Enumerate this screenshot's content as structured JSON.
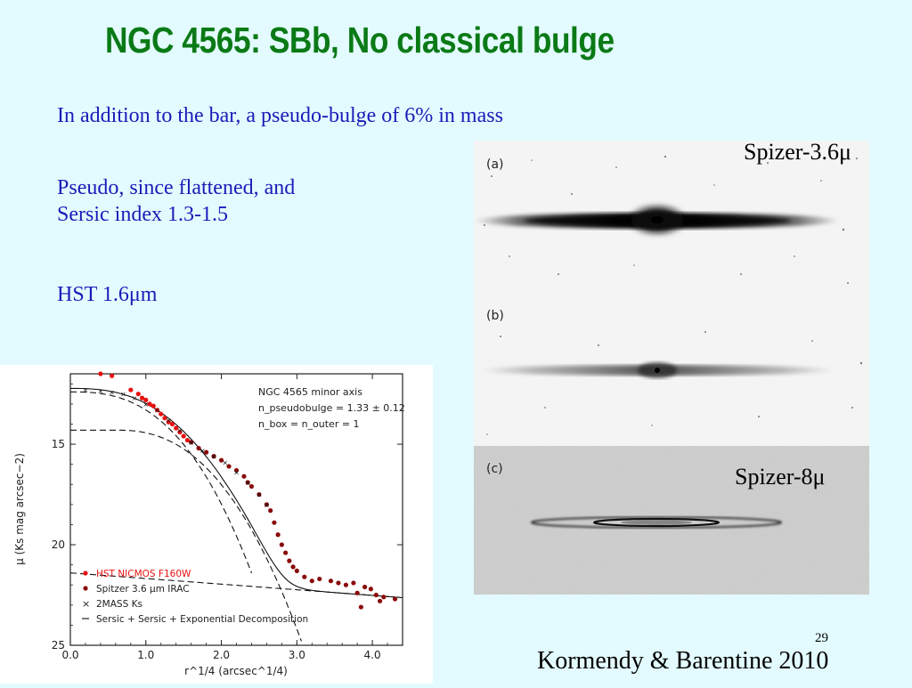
{
  "slide": {
    "title": "NGC 4565: SBb, No classical bulge",
    "line1": "In addition to the bar, a pseudo-bulge of 6% in mass",
    "line2": "Pseudo, since flattened, and",
    "line3": "Sersic index 1.3-1.5",
    "line4": "HST 1.6μm",
    "page_number": "29",
    "credit": "Kormendy & Barentine 2010"
  },
  "images": {
    "label_a": "(a)",
    "label_b": "(b)",
    "label_c": "(c)",
    "caption_top": "Spizer-3.6μ",
    "caption_mid": "Spizer-8μ"
  },
  "chart_data": {
    "type": "scatter",
    "title": "",
    "xlabel": "r^1/4 (arcsec^1/4)",
    "ylabel": "μ (Ks mag arcsec−2)",
    "xlim": [
      0.0,
      4.4
    ],
    "ylim": [
      25,
      11.5
    ],
    "y_inverted": true,
    "x_ticks": [
      "0.0",
      "1.0",
      "2.0",
      "3.0",
      "4.0"
    ],
    "y_ticks": [
      "15",
      "20",
      "25"
    ],
    "annotation_lines": [
      "NGC 4565 minor axis",
      "n_pseudobulge = 1.33 ± 0.12",
      "n_box = n_outer = 1"
    ],
    "legend": [
      "HST NICMOS F160W",
      "Spitzer 3.6 μm IRAC",
      "2MASS Ks",
      "Sersic + Sersic + Exponential Decomposition"
    ],
    "series": [
      {
        "name": "HST NICMOS F160W",
        "color": "#e81010",
        "marker": "circle",
        "points": [
          [
            0.4,
            11.5
          ],
          [
            0.55,
            11.6
          ],
          [
            0.8,
            12.3
          ],
          [
            0.9,
            12.5
          ],
          [
            0.95,
            12.7
          ],
          [
            1.0,
            12.8
          ],
          [
            1.05,
            13.0
          ],
          [
            1.1,
            13.1
          ],
          [
            1.15,
            13.3
          ],
          [
            1.2,
            13.5
          ],
          [
            1.25,
            13.7
          ],
          [
            1.3,
            13.9
          ],
          [
            1.35,
            14.0
          ],
          [
            1.4,
            14.2
          ],
          [
            1.45,
            14.4
          ],
          [
            1.5,
            14.6
          ],
          [
            1.55,
            14.8
          ]
        ]
      },
      {
        "name": "Spitzer 3.6 μm IRAC",
        "color": "#8a0b0b",
        "marker": "circle",
        "points": [
          [
            1.6,
            14.9
          ],
          [
            1.7,
            15.2
          ],
          [
            1.8,
            15.4
          ],
          [
            1.9,
            15.6
          ],
          [
            2.0,
            15.8
          ],
          [
            2.1,
            16.1
          ],
          [
            2.2,
            16.3
          ],
          [
            2.3,
            16.6
          ],
          [
            2.35,
            16.9
          ],
          [
            2.4,
            17.1
          ],
          [
            2.5,
            17.5
          ],
          [
            2.6,
            18.0
          ],
          [
            2.65,
            18.3
          ],
          [
            2.7,
            18.9
          ],
          [
            2.75,
            19.5
          ],
          [
            2.8,
            20.0
          ],
          [
            2.85,
            20.4
          ],
          [
            2.9,
            20.8
          ],
          [
            2.95,
            21.1
          ],
          [
            3.0,
            21.3
          ],
          [
            3.1,
            21.6
          ],
          [
            3.2,
            21.8
          ],
          [
            3.3,
            21.7
          ],
          [
            3.45,
            21.8
          ],
          [
            3.55,
            21.9
          ],
          [
            3.65,
            22.0
          ],
          [
            3.75,
            21.9
          ],
          [
            3.8,
            22.4
          ],
          [
            3.9,
            22.1
          ],
          [
            3.98,
            22.2
          ],
          [
            4.05,
            22.5
          ],
          [
            4.15,
            22.6
          ],
          [
            4.1,
            22.8
          ],
          [
            3.85,
            23.1
          ],
          [
            4.3,
            22.7
          ]
        ]
      },
      {
        "name": "2MASS Ks",
        "color": "#111111",
        "marker": "x",
        "points": [
          [
            0.2,
            12.3
          ],
          [
            0.4,
            12.35
          ],
          [
            0.55,
            12.4
          ],
          [
            0.7,
            12.5
          ],
          [
            0.85,
            12.7
          ],
          [
            1.0,
            13.0
          ],
          [
            1.15,
            13.3
          ],
          [
            1.3,
            13.8
          ],
          [
            1.45,
            14.3
          ],
          [
            1.6,
            14.9
          ],
          [
            1.75,
            15.3
          ],
          [
            1.9,
            15.6
          ],
          [
            2.05,
            15.9
          ],
          [
            2.2,
            16.4
          ],
          [
            2.35,
            16.9
          ],
          [
            2.5,
            17.5
          ],
          [
            2.6,
            18.0
          ]
        ]
      }
    ],
    "components": [
      {
        "name": "total",
        "style": "solid"
      },
      {
        "name": "pseudobulge",
        "style": "dashed"
      },
      {
        "name": "box",
        "style": "dashed"
      },
      {
        "name": "outer",
        "style": "dashed"
      }
    ]
  }
}
